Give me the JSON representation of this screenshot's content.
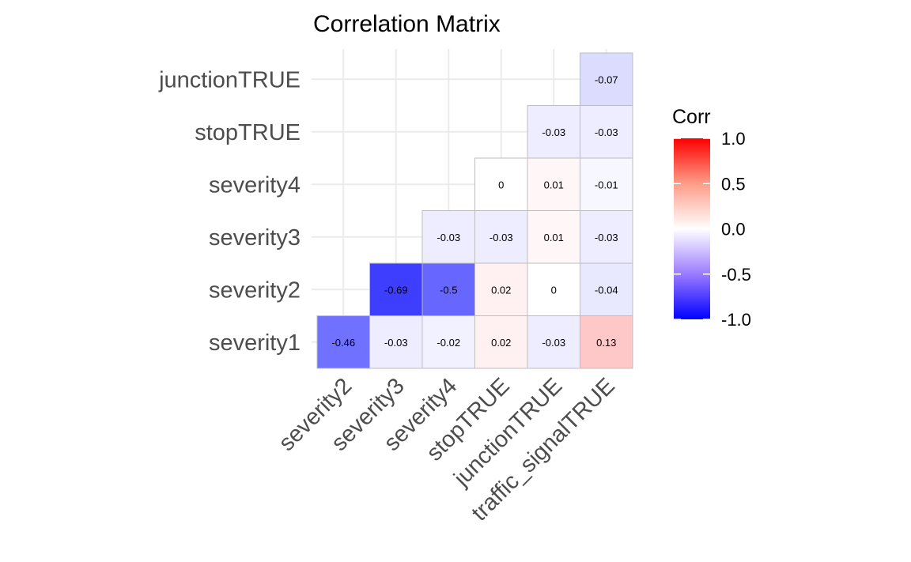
{
  "chart_data": {
    "type": "heatmap",
    "title": "Correlation Matrix",
    "x_categories": [
      "severity2",
      "severity3",
      "severity4",
      "stopTRUE",
      "junctionTRUE",
      "traffic_signalTRUE"
    ],
    "y_categories": [
      "severity1",
      "severity2",
      "severity3",
      "severity4",
      "stopTRUE",
      "junctionTRUE"
    ],
    "cells": [
      {
        "x": "severity2",
        "y": "severity1",
        "value": -0.46,
        "label": "-0.46"
      },
      {
        "x": "severity3",
        "y": "severity1",
        "value": -0.03,
        "label": "-0.03"
      },
      {
        "x": "severity4",
        "y": "severity1",
        "value": -0.02,
        "label": "-0.02"
      },
      {
        "x": "stopTRUE",
        "y": "severity1",
        "value": 0.02,
        "label": "0.02"
      },
      {
        "x": "junctionTRUE",
        "y": "severity1",
        "value": -0.03,
        "label": "-0.03"
      },
      {
        "x": "traffic_signalTRUE",
        "y": "severity1",
        "value": 0.13,
        "label": "0.13"
      },
      {
        "x": "severity3",
        "y": "severity2",
        "value": -0.69,
        "label": "-0.69"
      },
      {
        "x": "severity4",
        "y": "severity2",
        "value": -0.5,
        "label": "-0.5"
      },
      {
        "x": "stopTRUE",
        "y": "severity2",
        "value": 0.02,
        "label": "0.02"
      },
      {
        "x": "junctionTRUE",
        "y": "severity2",
        "value": 0,
        "label": "0"
      },
      {
        "x": "traffic_signalTRUE",
        "y": "severity2",
        "value": -0.04,
        "label": "-0.04"
      },
      {
        "x": "severity4",
        "y": "severity3",
        "value": -0.03,
        "label": "-0.03"
      },
      {
        "x": "stopTRUE",
        "y": "severity3",
        "value": -0.03,
        "label": "-0.03"
      },
      {
        "x": "junctionTRUE",
        "y": "severity3",
        "value": 0.01,
        "label": "0.01"
      },
      {
        "x": "traffic_signalTRUE",
        "y": "severity3",
        "value": -0.03,
        "label": "-0.03"
      },
      {
        "x": "stopTRUE",
        "y": "severity4",
        "value": 0,
        "label": "0"
      },
      {
        "x": "junctionTRUE",
        "y": "severity4",
        "value": 0.01,
        "label": "0.01"
      },
      {
        "x": "traffic_signalTRUE",
        "y": "severity4",
        "value": -0.01,
        "label": "-0.01"
      },
      {
        "x": "junctionTRUE",
        "y": "stopTRUE",
        "value": -0.03,
        "label": "-0.03"
      },
      {
        "x": "traffic_signalTRUE",
        "y": "stopTRUE",
        "value": -0.03,
        "label": "-0.03"
      },
      {
        "x": "traffic_signalTRUE",
        "y": "junctionTRUE",
        "value": -0.07,
        "label": "-0.07"
      }
    ],
    "legend": {
      "title": "Corr",
      "range": [
        -1.0,
        1.0
      ],
      "ticks": [
        "1.0",
        "0.5",
        "0.0",
        "-0.5",
        "-1.0"
      ],
      "low_color": "#0000ff",
      "mid_color": "#ffffff",
      "high_color": "#ff0000",
      "placement": "right"
    },
    "grid": true,
    "x_tick_rotation_degrees": 45
  }
}
